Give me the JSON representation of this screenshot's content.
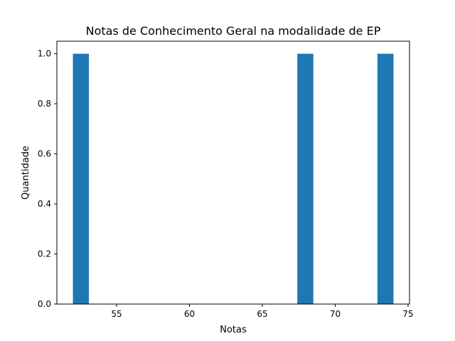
{
  "chart_data": {
    "type": "bar",
    "title": "Notas de Conhecimento Geral na modalidade de EP",
    "xlabel": "Notas",
    "ylabel": "Quantidade",
    "bins": [
      {
        "start": 52.0,
        "end": 53.1,
        "count": 1
      },
      {
        "start": 67.4,
        "end": 68.5,
        "count": 1
      },
      {
        "start": 72.9,
        "end": 74.0,
        "count": 1
      }
    ],
    "xlim": [
      50.9,
      75.1
    ],
    "ylim": [
      0,
      1.05
    ],
    "xticks": [
      "55",
      "60",
      "65",
      "70",
      "75"
    ],
    "yticks": [
      "0.0",
      "0.2",
      "0.4",
      "0.6",
      "0.8",
      "1.0"
    ],
    "bar_color": "#1f77b4",
    "grid": false,
    "legend": "none"
  }
}
